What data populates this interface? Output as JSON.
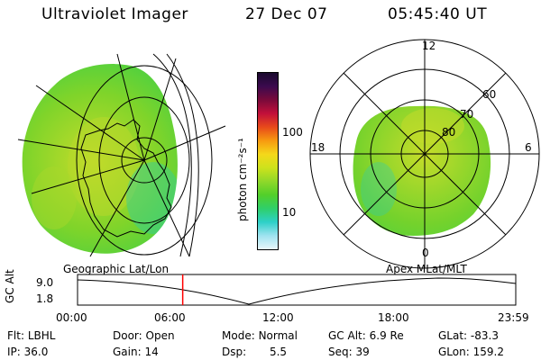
{
  "header": {
    "instrument": "Ultraviolet Imager",
    "date": "27 Dec 07",
    "time": "05:45:40 UT"
  },
  "colorbar": {
    "unit_label": "photon cm⁻²s⁻¹",
    "tick_100": "100",
    "tick_10": "10",
    "scale": "log",
    "range": [
      3,
      500
    ],
    "colors": [
      "#1a0a2e",
      "#3b0a4e",
      "#7a0a3a",
      "#c2103a",
      "#e84a1a",
      "#f79a10",
      "#f4d81a",
      "#cde21c",
      "#8fd82a",
      "#52cf2a",
      "#2fcf6a",
      "#2ed0c8",
      "#9fe3f0",
      "#e8f6fa"
    ]
  },
  "left_map": {
    "title": "Geographic Lat/Lon"
  },
  "right_map": {
    "title": "Apex MLat/MLT",
    "mlt_labels": {
      "top": "12",
      "left": "18",
      "right": "6",
      "bottom": "0"
    },
    "lat_labels": [
      "60",
      "70",
      "80"
    ]
  },
  "timeline": {
    "axis_label": "GC Alt",
    "ymax_label": "9.0",
    "ymin_label": "1.8",
    "ticks": [
      "00:00",
      "06:00",
      "12:00",
      "18:00",
      "23:59"
    ],
    "current_time_hours": 5.76,
    "curve_color": "#000000",
    "marker_color": "#ff0000"
  },
  "status": {
    "flt_label": "Flt:",
    "flt_value": "LBHL",
    "ip_label": "IP:",
    "ip_value": "36.0",
    "door_label": "Door:",
    "door_value": "Open",
    "gain_label": "Gain:",
    "gain_value": "14",
    "mode_label": "Mode:",
    "mode_value": "Normal",
    "dsp_label": "Dsp:",
    "dsp_value": "5.5",
    "gcalt_label": "GC Alt:",
    "gcalt_value": "6.9 Re",
    "seq_label": "Seq:",
    "seq_value": "39",
    "glat_label": "GLat:",
    "glat_value": "-83.3",
    "glon_label": "GLon:",
    "glon_value": "159.2"
  }
}
